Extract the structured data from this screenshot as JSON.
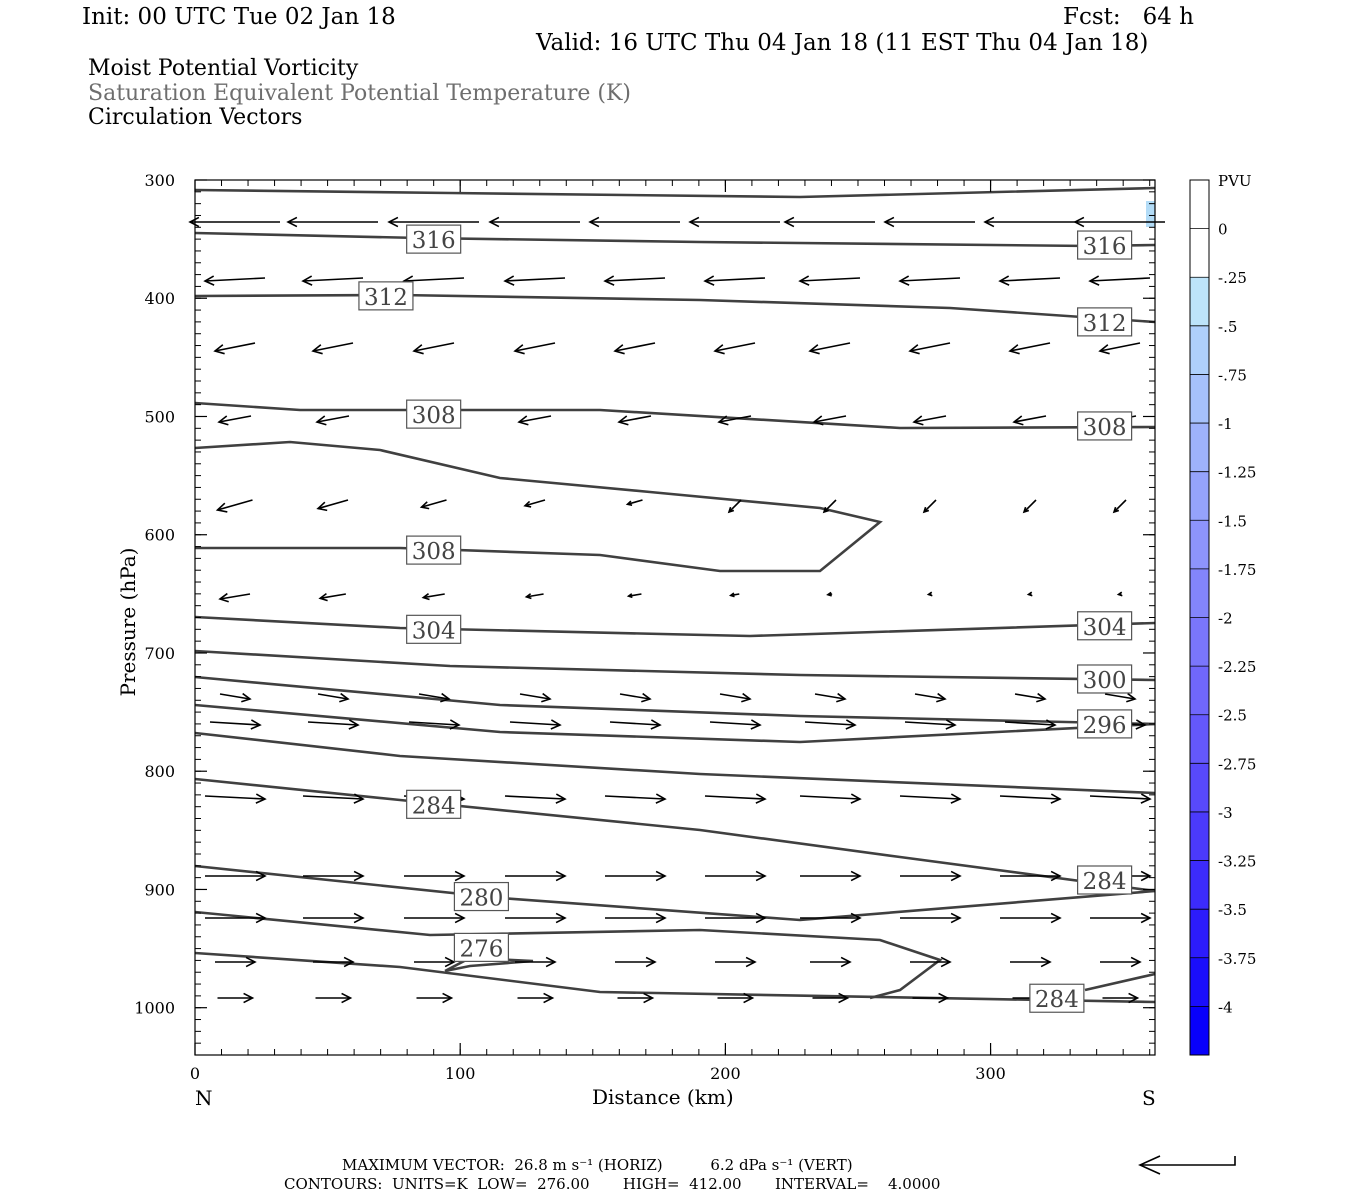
{
  "header": {
    "init": "Init: 00 UTC Tue 02 Jan 18",
    "fcst": "Fcst:   64 h",
    "valid": "Valid: 16 UTC Thu 04 Jan 18 (11 EST Thu 04 Jan 18)",
    "field1": "Moist Potential Vorticity",
    "field2": "Saturation Equivalent Potential Temperature (K)",
    "field3": "Circulation Vectors"
  },
  "footer": {
    "max_vector": "MAXIMUM VECTOR:  26.8 m s⁻¹ (HORIZ)          6.2 dPa s⁻¹ (VERT)",
    "contours": "CONTOURS:  UNITS=K  LOW=  276.00       HIGH=  412.00       INTERVAL=    4.0000"
  },
  "colors": {
    "contour": "#404040",
    "pv_fill": "#b3dcf7"
  },
  "chart_data": {
    "type": "contour",
    "xlabel": "Distance (km)",
    "ylabel": "Pressure (hPa)",
    "x_ticks": [
      "0",
      "100",
      "200",
      "300"
    ],
    "y_ticks": [
      "300",
      "400",
      "500",
      "600",
      "700",
      "800",
      "900",
      "1000"
    ],
    "x_end_labels": [
      "N",
      "S"
    ],
    "xlim": [
      0,
      362
    ],
    "ylim": [
      1040,
      300
    ],
    "contour_labels": [
      {
        "text": "316",
        "x": 90,
        "p": 350
      },
      {
        "text": "316",
        "x": 343,
        "p": 355
      },
      {
        "text": "312",
        "x": 72,
        "p": 398
      },
      {
        "text": "312",
        "x": 343,
        "p": 420
      },
      {
        "text": "308",
        "x": 90,
        "p": 498
      },
      {
        "text": "308",
        "x": 343,
        "p": 508
      },
      {
        "text": "308",
        "x": 90,
        "p": 613
      },
      {
        "text": "304",
        "x": 90,
        "p": 680
      },
      {
        "text": "304",
        "x": 343,
        "p": 677
      },
      {
        "text": "300",
        "x": 343,
        "p": 722
      },
      {
        "text": "296",
        "x": 343,
        "p": 760
      },
      {
        "text": "284",
        "x": 90,
        "p": 828
      },
      {
        "text": "284",
        "x": 343,
        "p": 892
      },
      {
        "text": "280",
        "x": 108,
        "p": 906
      },
      {
        "text": "276",
        "x": 108,
        "p": 949
      },
      {
        "text": "284",
        "x": 325,
        "p": 992
      }
    ],
    "colorbar": {
      "title": "PVU",
      "levels": [
        "0",
        "-.25",
        "-.5",
        "-.75",
        "-1",
        "-1.25",
        "-1.5",
        "-1.75",
        "-2",
        "-2.25",
        "-2.5",
        "-2.75",
        "-3",
        "-3.25",
        "-3.5",
        "-3.75",
        "-4"
      ],
      "colors": [
        "#ffffff",
        "#ffffff",
        "#bde4fa",
        "#afd0fb",
        "#a6c1fb",
        "#9eb2fb",
        "#95a3fb",
        "#8d94fb",
        "#8385fb",
        "#7a76fb",
        "#7067fb",
        "#6458fb",
        "#5849fb",
        "#4b3afb",
        "#3c2bfb",
        "#2c1cfb",
        "#1a0efb",
        "#0800fb"
      ]
    }
  }
}
